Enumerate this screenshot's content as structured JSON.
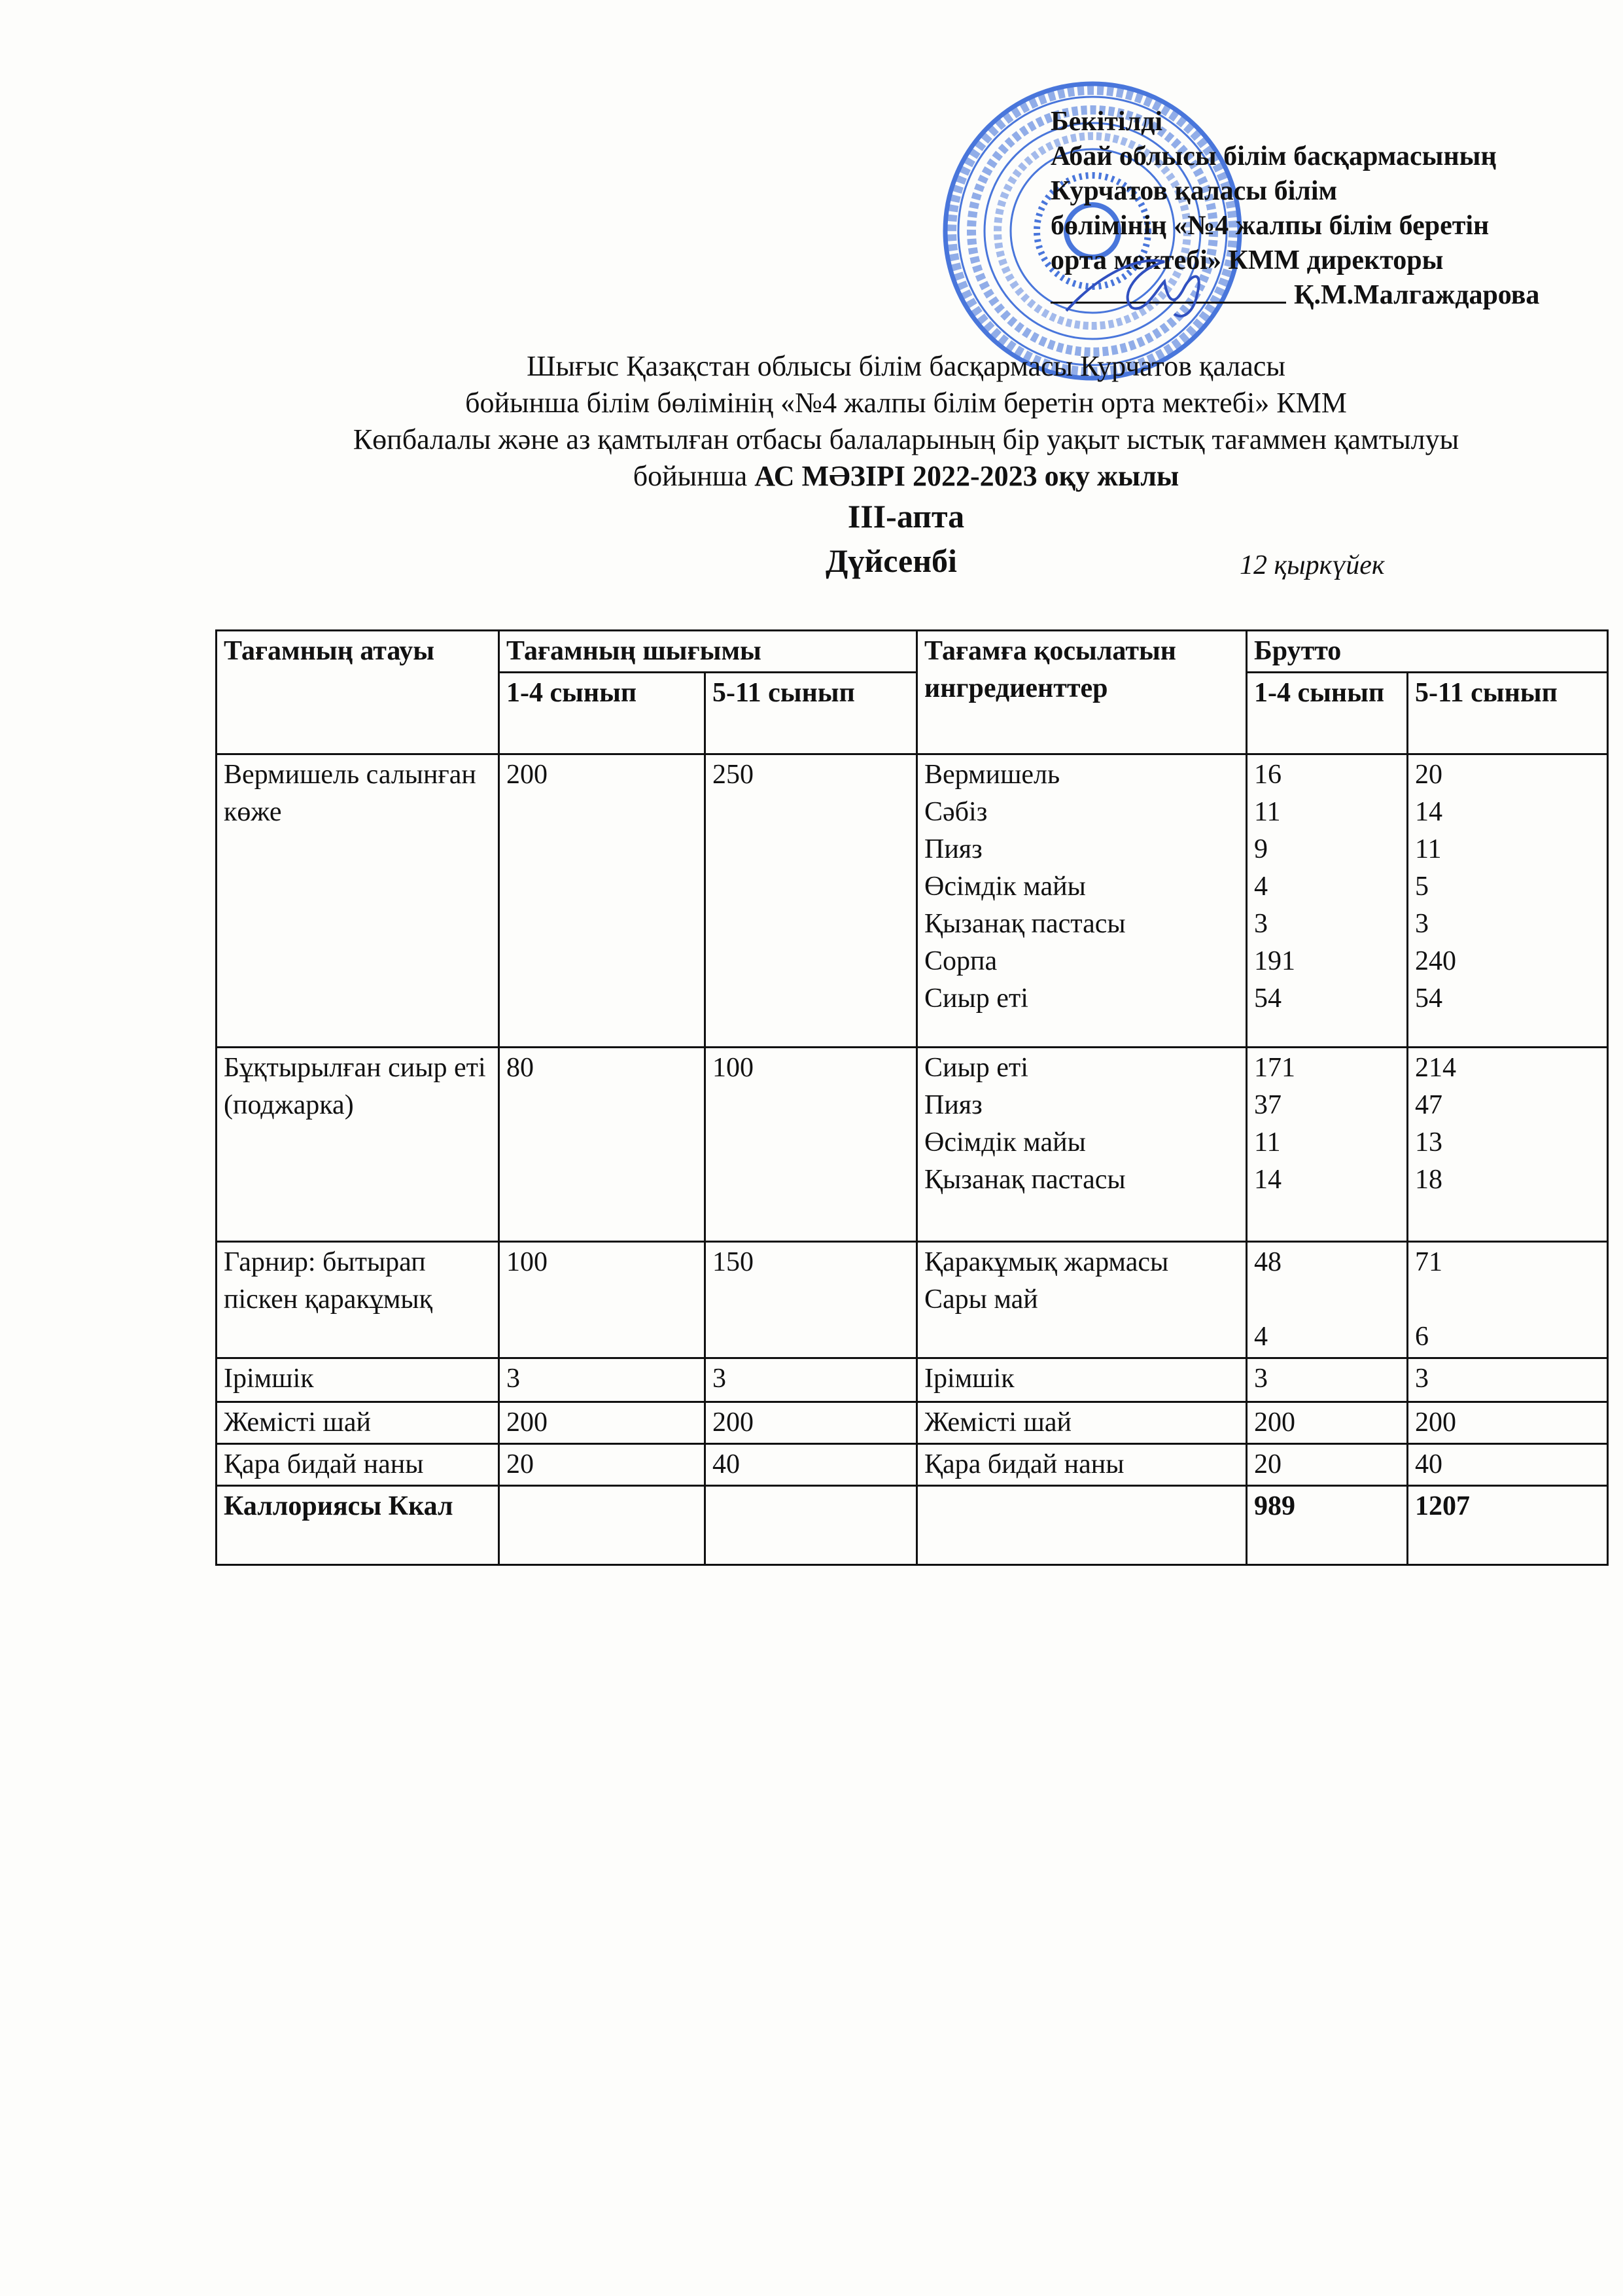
{
  "approval": {
    "lines": [
      "Бекітілді",
      "Абай облысы білім басқармасының",
      "Курчатов қаласы білім",
      "бөлімінің «№4 жалпы білім беретін",
      "орта мектебі» КММ директоры"
    ],
    "signer": "Қ.М.Малгаждарова",
    "stamp_color": "#2a5fd6"
  },
  "header": {
    "lines": [
      "Шығыс Қазақстан облысы білім басқармасы Курчатов қаласы",
      "бойынша білім бөлімінің «№4 жалпы білім беретін орта мектебі» КММ",
      "Көпбалалы және аз қамтылған отбасы балаларының бір уақыт ыстық тағаммен қамтылуы"
    ],
    "line4_prefix": "бойынша ",
    "line4_bold": "АС МӘЗІРІ 2022-2023 оқу жылы",
    "week": "III-апта",
    "day": "Дүйсенбі",
    "date": "12 қыркүйек"
  },
  "table": {
    "headers": {
      "name": "Тағамның атауы",
      "output": "Тағамның шығымы",
      "output_1_4": "1-4 сынып",
      "output_5_11": "5-11 сынып",
      "ingredients": "Тағамға қосылатын ингредиенттер",
      "brutto": "Брутто",
      "brutto_1_4": "1-4 сынып",
      "brutto_5_11": "5-11 сынып"
    },
    "rows": [
      {
        "name": "Вермишель салынған көже",
        "out14": "200",
        "out511": "250",
        "ingredients": [
          "Вермишель",
          "Сәбіз",
          "Пияз",
          "Өсімдік майы",
          "Қызанақ пастасы",
          "Сорпа",
          "Сиыр еті"
        ],
        "b14": [
          "16",
          "11",
          "9",
          "4",
          "3",
          "191",
          "54"
        ],
        "b511": [
          "20",
          "14",
          "11",
          "5",
          "3",
          "240",
          "54"
        ]
      },
      {
        "name": "Бұқтырылған сиыр еті (поджарка)",
        "out14": "80",
        "out511": "100",
        "ingredients": [
          "Сиыр еті",
          "Пияз",
          "Өсімдік майы",
          "Қызанақ пастасы"
        ],
        "b14": [
          "171",
          "37",
          "11",
          "14"
        ],
        "b511": [
          "214",
          "47",
          "13",
          "18"
        ]
      },
      {
        "name": "Гарнир: бытырап піскен қаракұмық",
        "out14": "100",
        "out511": "150",
        "ingredients": [
          "Қаракұмық жармасы",
          "Сары май"
        ],
        "b14": [
          "48",
          "",
          "4"
        ],
        "b511": [
          "71",
          "",
          "6"
        ]
      },
      {
        "name": "Ірімшік",
        "out14": "3",
        "out511": "3",
        "ingredients": [
          "Ірімшік"
        ],
        "b14": [
          "3"
        ],
        "b511": [
          "3"
        ]
      },
      {
        "name": "Жемісті шай",
        "out14": "200",
        "out511": "200",
        "ingredients": [
          "Жемісті шай"
        ],
        "b14": [
          "200"
        ],
        "b511": [
          "200"
        ]
      },
      {
        "name": "Қара бидай наны",
        "out14": "20",
        "out511": "40",
        "ingredients": [
          "Қара бидай наны"
        ],
        "b14": [
          "20"
        ],
        "b511": [
          "40"
        ]
      }
    ],
    "total": {
      "label": "Каллориясы Ккал",
      "b14": "989",
      "b511": "1207"
    }
  }
}
